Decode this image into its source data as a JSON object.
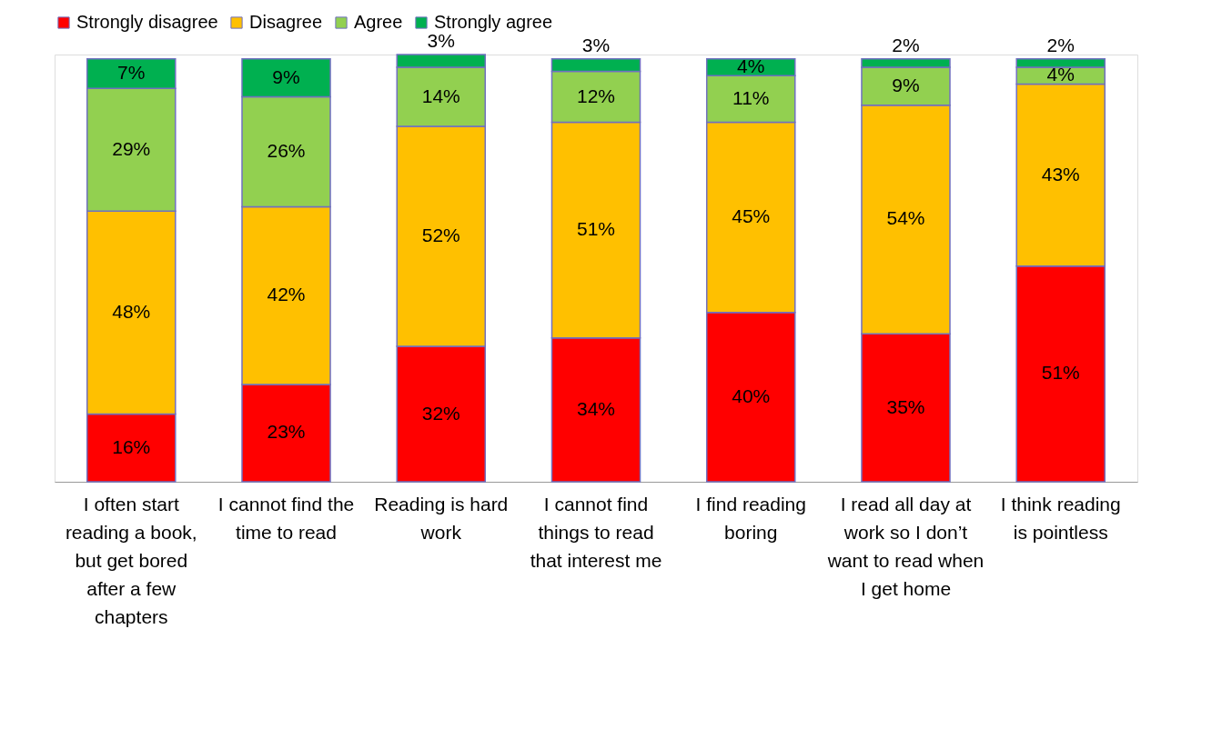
{
  "chart_data": {
    "type": "bar",
    "stacked": true,
    "legend": "top",
    "categories": [
      "I often start reading a book, but get bored after a few chapters",
      "I cannot find the time to read",
      "Reading is hard work",
      "I cannot find things to read that interest me",
      "I find reading boring",
      "I read all day at work so I don’t want to read when I get home",
      "I think reading is pointless"
    ],
    "series": [
      {
        "name": "Strongly disagree",
        "color": "#ff0000",
        "values": [
          16,
          23,
          32,
          34,
          40,
          35,
          51
        ],
        "value_labels": [
          "16%",
          "23%",
          "32%",
          "34%",
          "40%",
          "35%",
          "51%"
        ]
      },
      {
        "name": "Disagree",
        "color": "#ffc000",
        "values": [
          48,
          42,
          52,
          51,
          45,
          54,
          43
        ],
        "value_labels": [
          "48%",
          "42%",
          "52%",
          "51%",
          "45%",
          "54%",
          "43%"
        ]
      },
      {
        "name": "Agree",
        "color": "#92d050",
        "values": [
          29,
          26,
          14,
          12,
          11,
          9,
          4
        ],
        "value_labels": [
          "29%",
          "26%",
          "14%",
          "12%",
          "11%",
          "9%",
          "4%"
        ]
      },
      {
        "name": "Strongly agree",
        "color": "#00b050",
        "values": [
          7,
          9,
          3,
          3,
          4,
          2,
          2
        ],
        "value_labels": [
          "7%",
          "9%",
          "3%",
          "3%",
          "4%",
          "2%",
          "2%"
        ]
      }
    ]
  }
}
